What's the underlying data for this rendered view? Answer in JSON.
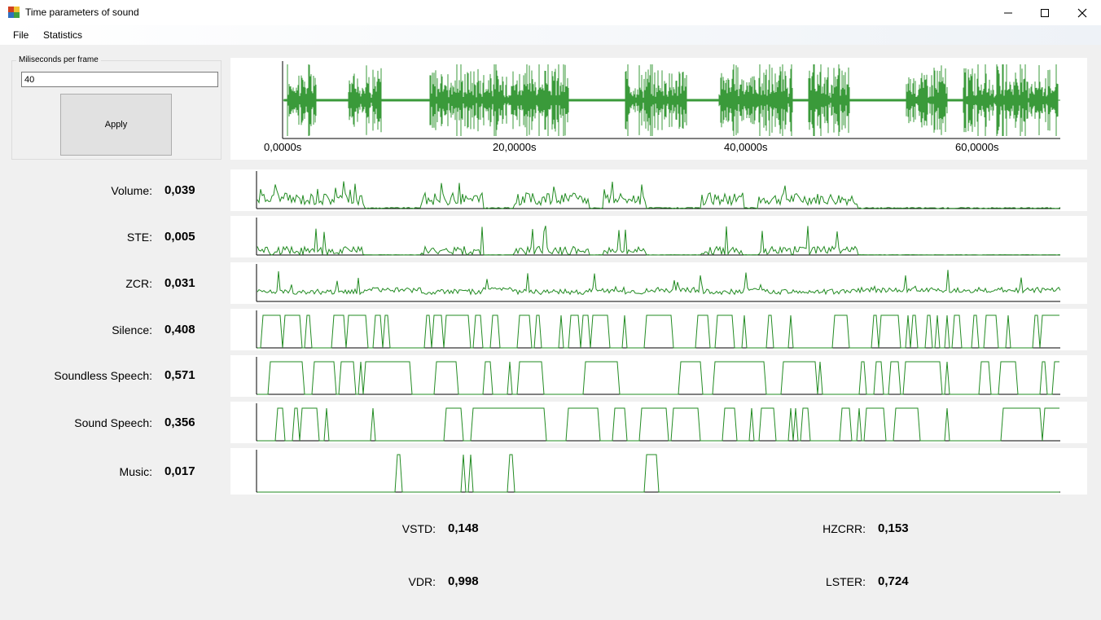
{
  "window": {
    "title": "Time parameters of sound",
    "minimize_icon": "minimize-icon",
    "maximize_icon": "maximize-icon",
    "close_icon": "close-icon"
  },
  "menu": {
    "items": [
      "File",
      "Statistics"
    ]
  },
  "settings": {
    "group_label": "Miliseconds per frame",
    "ms_value": "40",
    "apply_label": "Apply"
  },
  "waveform": {
    "x_ticks": [
      "0,0000s",
      "20,0000s",
      "40,0000s",
      "60,0000s"
    ],
    "color": "#3a9a3a"
  },
  "params": [
    {
      "label": "Volume:",
      "value": "0,039"
    },
    {
      "label": "STE:",
      "value": "0,005"
    },
    {
      "label": "ZCR:",
      "value": "0,031"
    },
    {
      "label": "Silence:",
      "value": "0,408"
    },
    {
      "label": "Soundless Speech:",
      "value": "0,571"
    },
    {
      "label": "Sound Speech:",
      "value": "0,356"
    },
    {
      "label": "Music:",
      "value": "0,017"
    }
  ],
  "stats": {
    "vstd_label": "VSTD:",
    "vstd_value": "0,148",
    "vdr_label": "VDR:",
    "vdr_value": "0,998",
    "hzcrr_label": "HZCRR:",
    "hzcrr_value": "0,153",
    "lster_label": "LSTER:",
    "lster_value": "0,724"
  },
  "colors": {
    "plot_line": "#228b22",
    "wave": "#3a9a3a",
    "accent_icon": "#d04020"
  }
}
